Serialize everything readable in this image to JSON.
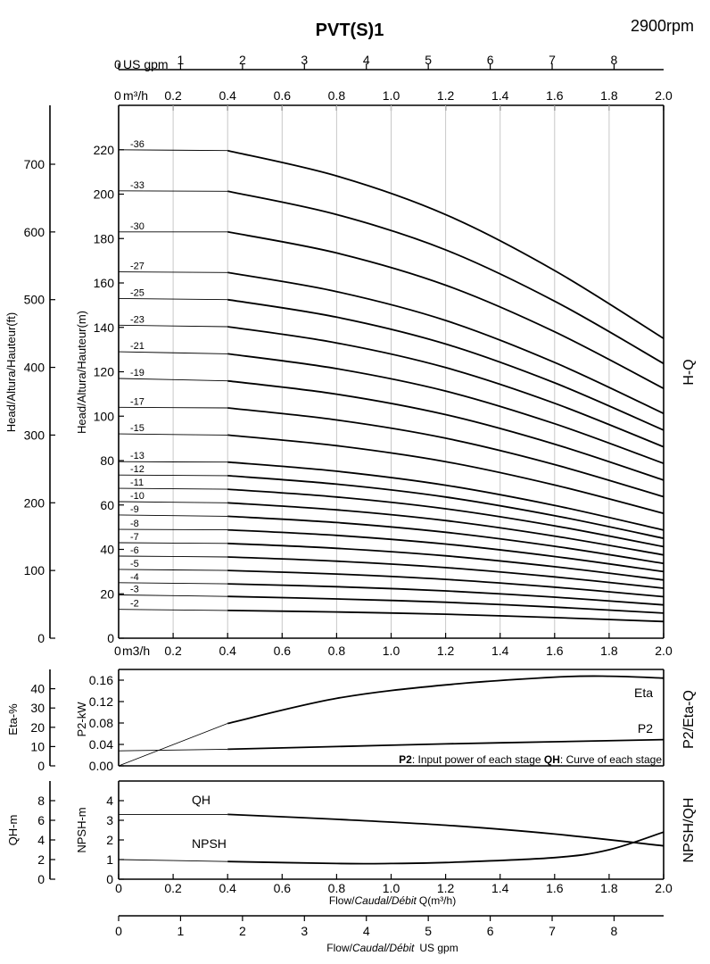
{
  "title": "PVT(S)1",
  "speed": "2900rpm",
  "chart_data": [
    {
      "id": "head",
      "type": "line",
      "side_label": "H-Q",
      "ylabel_m": "Head/Altura/Hauteur(m)",
      "ylabel_ft": "Head/Altura/Hauteur(ft)",
      "xlim": [
        0,
        2.0
      ],
      "ylim_m": [
        0,
        240
      ],
      "yticks_m": [
        0,
        20,
        40,
        60,
        80,
        100,
        120,
        140,
        160,
        180,
        200,
        220
      ],
      "ylim_ft": [
        0,
        787
      ],
      "yticks_ft": [
        0,
        100,
        200,
        300,
        400,
        500,
        600,
        700
      ],
      "x_unit_label": "m3/h",
      "xticks": [
        "0.2",
        "0.4",
        "0.6",
        "0.8",
        "1.0",
        "1.2",
        "1.4",
        "1.6",
        "1.8",
        "2.0"
      ],
      "curve_x": [
        0,
        0.4,
        0.8,
        1.2,
        1.6,
        2.0
      ],
      "series": [
        {
          "name": "-2",
          "values": [
            13,
            12.5,
            11.8,
            10.8,
            9.3,
            7.5
          ]
        },
        {
          "name": "-3",
          "values": [
            19.5,
            18.8,
            17.7,
            16.2,
            14,
            11.3
          ]
        },
        {
          "name": "-4",
          "values": [
            25,
            24.5,
            23.2,
            21.3,
            18.5,
            15
          ]
        },
        {
          "name": "-5",
          "values": [
            31,
            30.5,
            28.9,
            26.5,
            23,
            18.7
          ]
        },
        {
          "name": "-6",
          "values": [
            37,
            36.6,
            34.7,
            31.8,
            27.6,
            22.5
          ]
        },
        {
          "name": "-7",
          "values": [
            43,
            42.7,
            40.5,
            37.1,
            32.2,
            26.2
          ]
        },
        {
          "name": "-8",
          "values": [
            49,
            48.8,
            46.3,
            42.4,
            36.8,
            30
          ]
        },
        {
          "name": "-9",
          "values": [
            55.5,
            54.9,
            52.1,
            47.7,
            41.4,
            33.7
          ]
        },
        {
          "name": "-10",
          "values": [
            61.5,
            61,
            57.8,
            53,
            46,
            37.5
          ]
        },
        {
          "name": "-11",
          "values": [
            67.5,
            67.1,
            63.6,
            58.3,
            50.6,
            41.2
          ]
        },
        {
          "name": "-12",
          "values": [
            73.5,
            73.2,
            69.4,
            63.6,
            55.2,
            45
          ]
        },
        {
          "name": "-13",
          "values": [
            79.5,
            79.3,
            75.2,
            68.9,
            59.8,
            48.7
          ]
        },
        {
          "name": "-15",
          "values": [
            92,
            91.5,
            86.7,
            79.5,
            69,
            56.2
          ]
        },
        {
          "name": "-17",
          "values": [
            104,
            103.7,
            98.3,
            90.1,
            78.2,
            63.7
          ]
        },
        {
          "name": "-19",
          "values": [
            117,
            115.9,
            109.9,
            100.7,
            87.4,
            71.2
          ]
        },
        {
          "name": "-21",
          "values": [
            129,
            128.1,
            121.4,
            111.3,
            96.6,
            78.7
          ]
        },
        {
          "name": "-23",
          "values": [
            141,
            140.3,
            133,
            121.9,
            105.8,
            86.2
          ]
        },
        {
          "name": "-25",
          "values": [
            153,
            152.5,
            144.6,
            132.5,
            115,
            93.7
          ]
        },
        {
          "name": "-27",
          "values": [
            165,
            164.7,
            156.1,
            143.1,
            124.2,
            101.2
          ]
        },
        {
          "name": "-30",
          "values": [
            183,
            183,
            173.5,
            159,
            138,
            112.5
          ]
        },
        {
          "name": "-33",
          "values": [
            201.5,
            201.3,
            190.8,
            174.9,
            151.8,
            123.7
          ]
        },
        {
          "name": "-36",
          "values": [
            220,
            219.6,
            208.2,
            190.8,
            165.6,
            135
          ]
        }
      ]
    },
    {
      "id": "power_eff",
      "type": "line",
      "side_label": "P2/Eta-Q",
      "ylabel_eta": "Eta-%",
      "ylabel_p2": "P2-kW",
      "ylim_eta": [
        0,
        50
      ],
      "yticks_eta": [
        0,
        10,
        20,
        30,
        40
      ],
      "ylim_p2": [
        0,
        0.18
      ],
      "yticks_p2": [
        "0.00",
        "0.04",
        "0.08",
        "0.12",
        "0.16"
      ],
      "xlim": [
        0,
        2.0
      ],
      "series": [
        {
          "name": "Eta",
          "axis": "eta",
          "x": [
            0,
            0.4,
            0.8,
            1.2,
            1.6,
            1.8,
            2.0
          ],
          "values": [
            0,
            22,
            35,
            42,
            46,
            46.5,
            45.5
          ]
        },
        {
          "name": "P2",
          "axis": "p2",
          "x": [
            0,
            0.4,
            0.8,
            1.2,
            1.6,
            2.0
          ],
          "values": [
            0.028,
            0.031,
            0.036,
            0.041,
            0.045,
            0.049
          ]
        }
      ],
      "note_bold_1": "P2",
      "note_text_1": ": Input power of each stage ",
      "note_bold_2": "QH",
      "note_text_2": ": Curve of each stage"
    },
    {
      "id": "npsh_qh",
      "type": "line",
      "side_label": "NPSH/QH",
      "ylabel_qh": "QH-m",
      "ylabel_npsh": "NPSH-m",
      "ylim_qh": [
        0,
        10
      ],
      "yticks_qh": [
        0,
        2,
        4,
        6,
        8
      ],
      "ylim_npsh": [
        0,
        5
      ],
      "yticks_npsh": [
        0,
        1,
        2,
        3,
        4
      ],
      "xlim": [
        0,
        2.0
      ],
      "xticks": [
        "0",
        "0.2",
        "0.4",
        "0.6",
        "0.8",
        "1.0",
        "1.2",
        "1.4",
        "1.6",
        "1.8",
        "2.0"
      ],
      "xlabel_plain": "Flow/",
      "xlabel_italic": "Caudal/Débit",
      "xlabel_unit": "Q(m³/h)",
      "series": [
        {
          "name": "QH",
          "axis": "npsh",
          "x": [
            0,
            0.4,
            0.8,
            1.2,
            1.6,
            2.0
          ],
          "values": [
            3.3,
            3.3,
            3.05,
            2.75,
            2.3,
            1.7
          ]
        },
        {
          "name": "NPSH",
          "axis": "npsh",
          "x": [
            0,
            0.4,
            0.8,
            1.0,
            1.2,
            1.6,
            1.8,
            2.0
          ],
          "values": [
            1.0,
            0.9,
            0.8,
            0.8,
            0.85,
            1.1,
            1.5,
            2.4
          ]
        }
      ]
    }
  ],
  "top_axes": {
    "usgpm_label": "US gpm",
    "usgpm_zero": "0",
    "usgpm_ticks": [
      "1",
      "2",
      "3",
      "4",
      "5",
      "6",
      "7",
      "8"
    ],
    "usgpm_max": 8.8,
    "m3h_zero": "0",
    "m3h_label": "m³/h",
    "m3h_ticks": [
      "0.2",
      "0.4",
      "0.6",
      "0.8",
      "1.0",
      "1.2",
      "1.4",
      "1.6",
      "1.8",
      "2.0"
    ]
  },
  "bottom_axis": {
    "ticks": [
      "0",
      "1",
      "2",
      "3",
      "4",
      "5",
      "6",
      "7",
      "8"
    ],
    "max": 8.8,
    "label_plain": "Flow/",
    "label_italic": "Caudal/Débit",
    "label_unit": "US gpm"
  }
}
